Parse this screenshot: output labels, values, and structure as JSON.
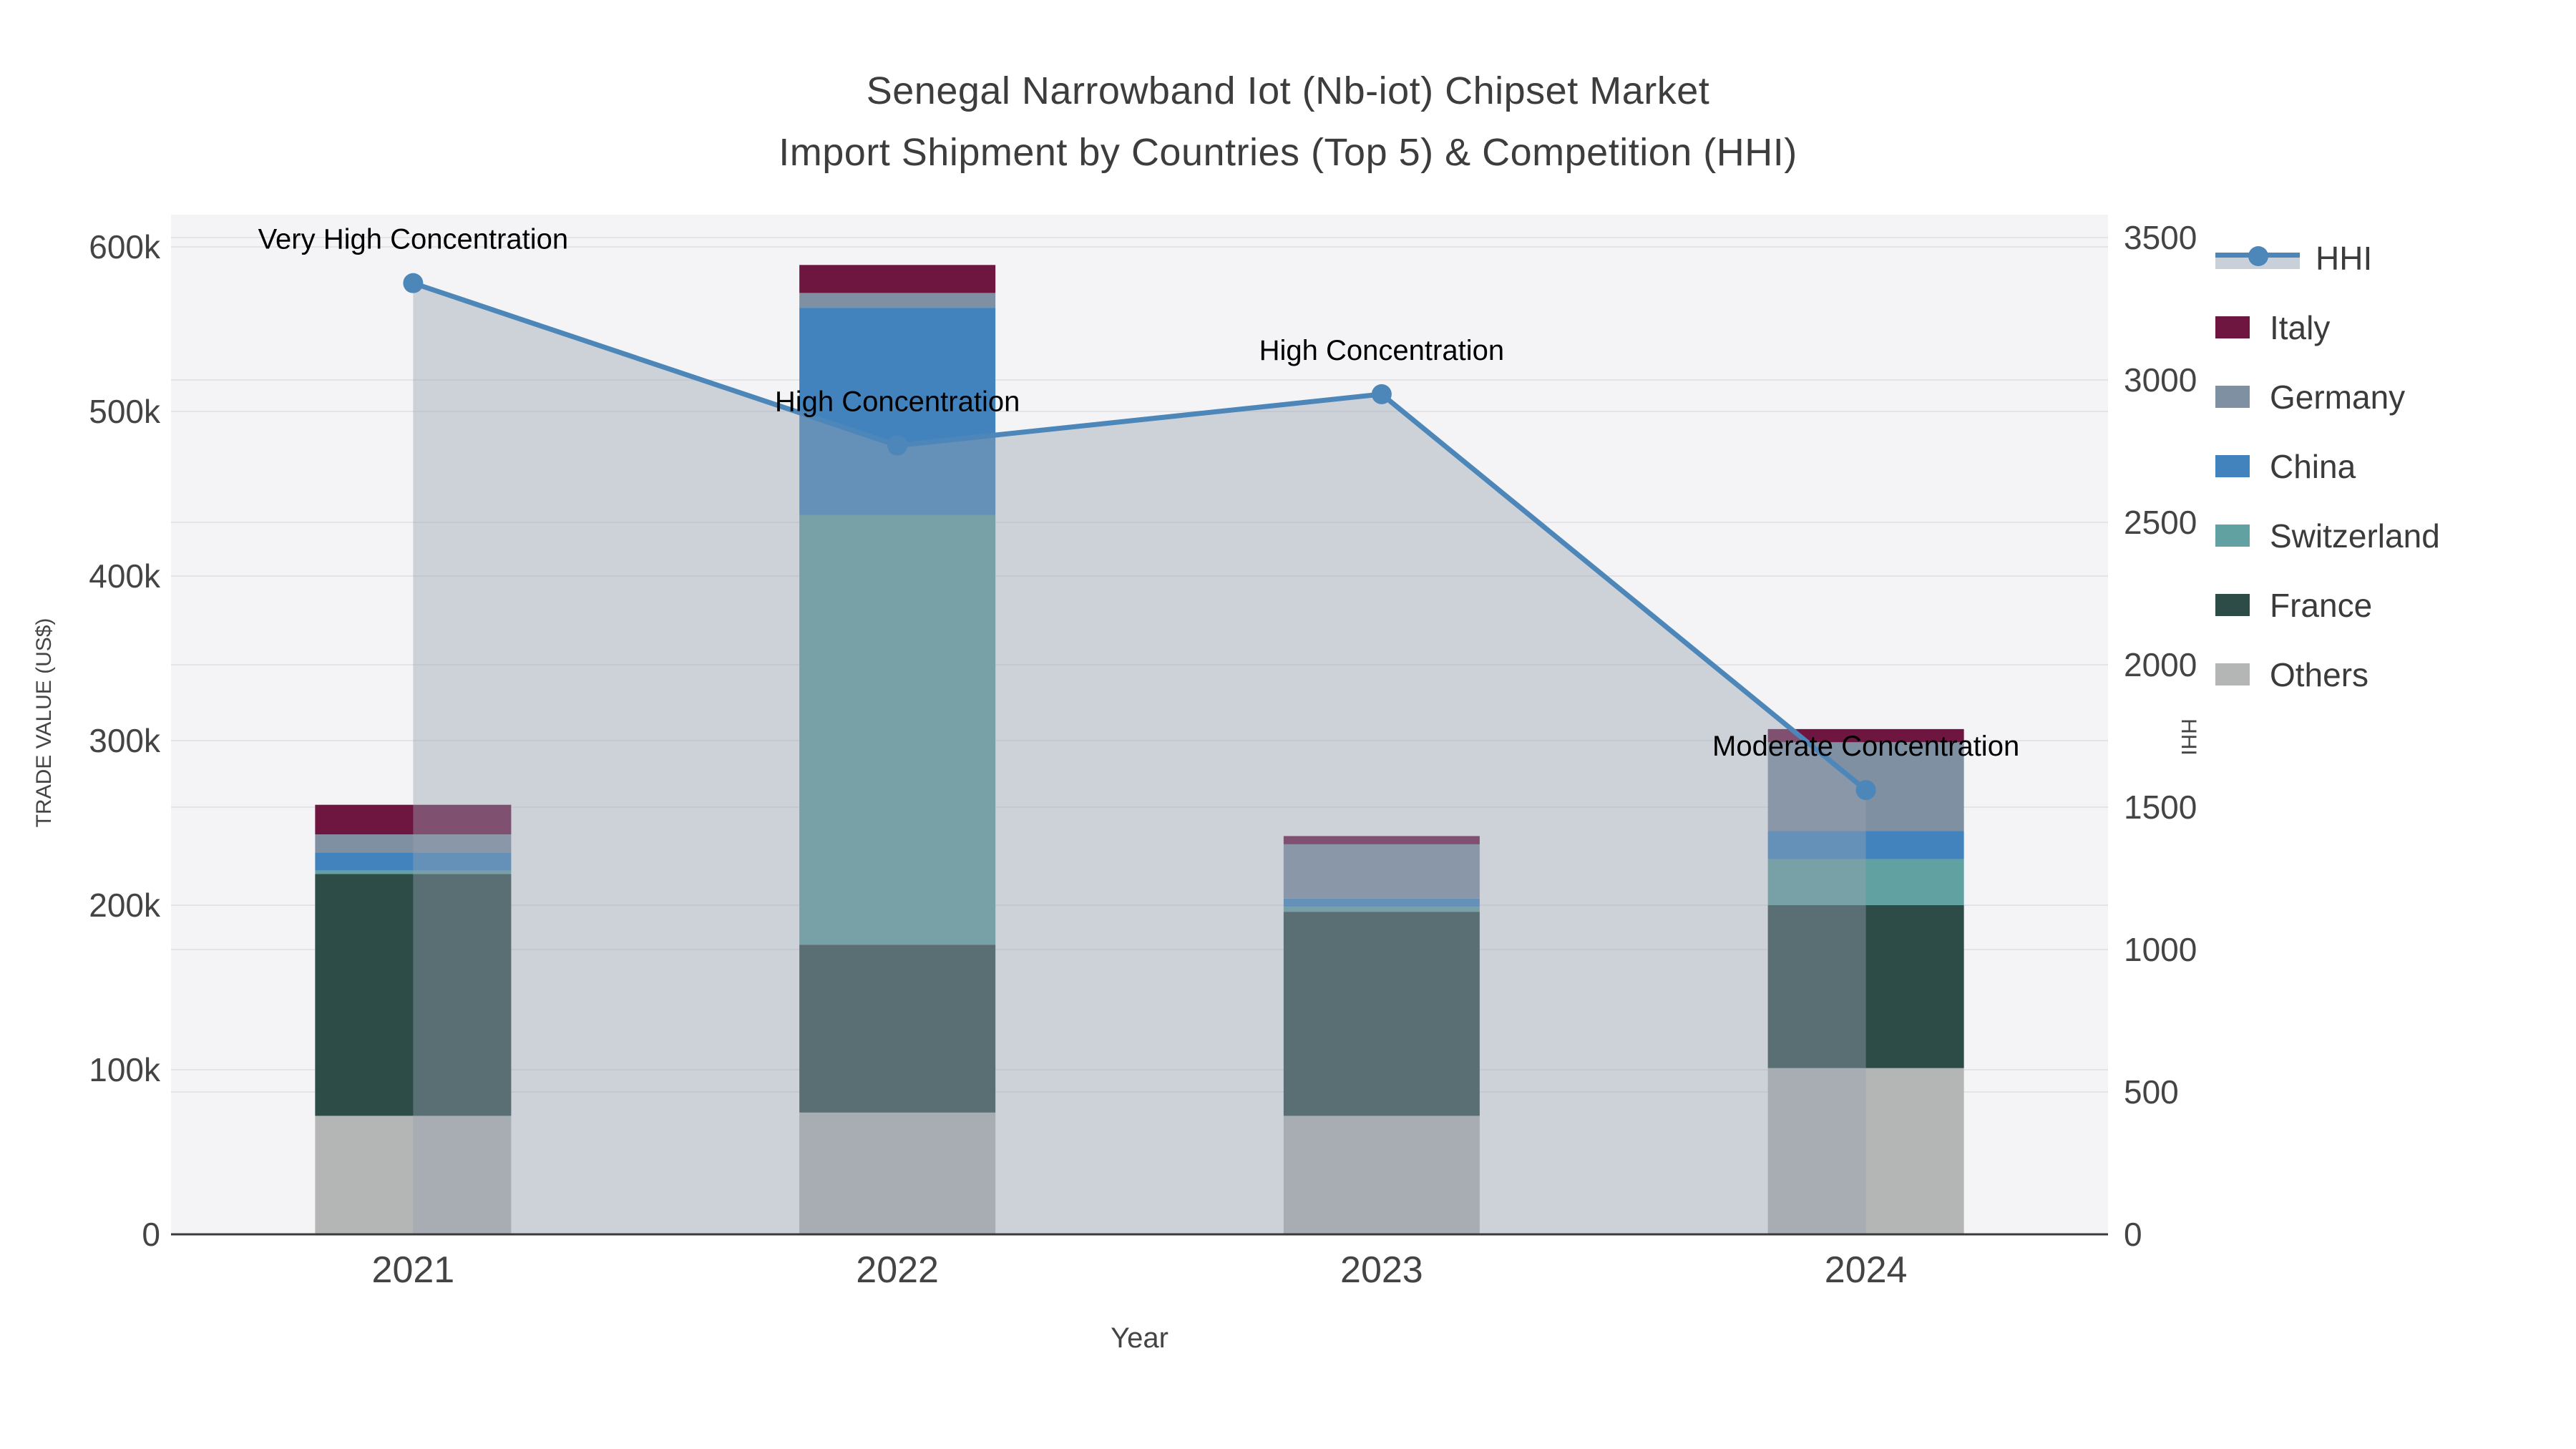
{
  "title": {
    "line1": "Senegal Narrowband Iot (Nb-iot) Chipset Market",
    "line2": "Import Shipment by Countries (Top 5) & Competition (HHI)"
  },
  "axes": {
    "x_title": "Year",
    "y_left_title": "TRADE VALUE (US$)",
    "y_right_title": "HHI",
    "y_left_ticks": [
      "0",
      "100k",
      "200k",
      "300k",
      "400k",
      "500k",
      "600k"
    ],
    "y_right_ticks": [
      "0",
      "500",
      "1000",
      "1500",
      "2000",
      "2500",
      "3000",
      "3500"
    ]
  },
  "legend": {
    "items": [
      {
        "label": "HHI",
        "type": "line",
        "color": "#4d86b8"
      },
      {
        "label": "Italy",
        "type": "swatch",
        "color": "#6e1640"
      },
      {
        "label": "Germany",
        "type": "swatch",
        "color": "#8090a3"
      },
      {
        "label": "China",
        "type": "swatch",
        "color": "#4383bd"
      },
      {
        "label": "Switzerland",
        "type": "swatch",
        "color": "#62a1a1"
      },
      {
        "label": "France",
        "type": "swatch",
        "color": "#2d4b47"
      },
      {
        "label": "Others",
        "type": "swatch",
        "color": "#b4b6b5"
      }
    ]
  },
  "chart_data": {
    "type": "combo: stacked bar (trade value, left axis) + line with area fill (HHI, right axis)",
    "categories": [
      "2021",
      "2022",
      "2023",
      "2024"
    ],
    "bar_unit": "US$",
    "series": [
      {
        "name": "Others",
        "color": "#b4b6b5",
        "values": [
          72000,
          74000,
          72000,
          101000
        ]
      },
      {
        "name": "France",
        "color": "#2d4b47",
        "values": [
          147000,
          102000,
          124000,
          99000
        ]
      },
      {
        "name": "Switzerland",
        "color": "#62a1a1",
        "values": [
          2000,
          261000,
          3000,
          28000
        ]
      },
      {
        "name": "China",
        "color": "#4383bd",
        "values": [
          11000,
          126000,
          5000,
          17000
        ]
      },
      {
        "name": "Germany",
        "color": "#8090a3",
        "values": [
          11000,
          9000,
          33000,
          54000
        ]
      },
      {
        "name": "Italy",
        "color": "#6e1640",
        "values": [
          18000,
          17000,
          5000,
          8000
        ]
      }
    ],
    "bar_totals": [
      261000,
      589000,
      242000,
      307000
    ],
    "line": {
      "name": "HHI",
      "color": "#4d86b8",
      "area_color": "rgba(150,161,177,0.42)",
      "values": [
        3340,
        2770,
        2950,
        1560
      ]
    },
    "annotations": [
      {
        "x": "2021",
        "text": "Very High Concentration"
      },
      {
        "x": "2022",
        "text": "High Concentration"
      },
      {
        "x": "2023",
        "text": "High Concentration"
      },
      {
        "x": "2024",
        "text": "Moderate Concentration"
      }
    ],
    "y_left": {
      "min": 0,
      "max": 600000,
      "grid_step": 100000
    },
    "y_right": {
      "min": 0,
      "max": 3500,
      "grid_step": 500
    },
    "layout": {
      "grid": "on (both axes)",
      "legend_position": "top-right outside plot"
    }
  }
}
